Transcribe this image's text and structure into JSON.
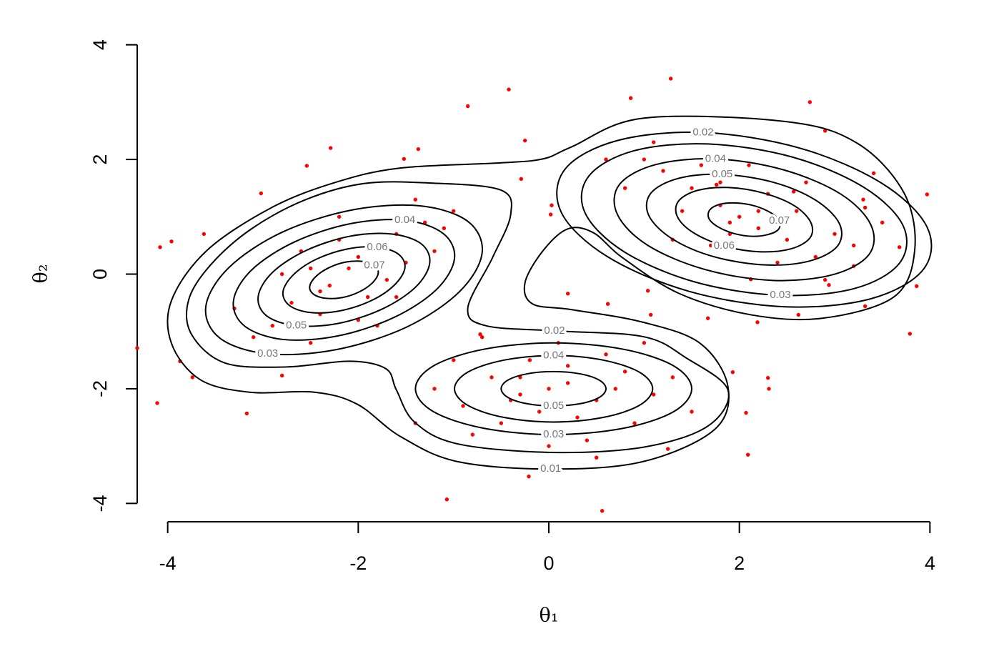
{
  "chart_data": {
    "type": "contour",
    "xlabel": "θ₁",
    "ylabel": "θ₂",
    "xlim": [
      -4.32,
      4.32
    ],
    "ylim": [
      -4.32,
      4.32
    ],
    "xticks": [
      -4,
      -2,
      0,
      2,
      4
    ],
    "yticks": [
      -4,
      -2,
      0,
      2,
      4
    ],
    "line_color": "#000000",
    "point_color": "#ff0000",
    "contours": [
      {
        "level": 0.01,
        "x": [
          -1.56,
          -0.51,
          -0.06,
          0.24,
          0.99,
          2.49,
          3.24,
          3.73,
          3.84,
          3.62,
          2.87,
          2.12,
          1.37,
          0.77,
          0.47,
          0.2,
          -0.06,
          -0.25,
          -0.17,
          0.24,
          0.99,
          1.59,
          1.88,
          1.74,
          0.99,
          0.02,
          -0.96,
          -1.56,
          -2.01,
          -2.46,
          -3.14,
          -3.66,
          -3.96,
          -3.96,
          -3.59,
          -2.91,
          -2.24
        ],
        "y": [
          1.85,
          1.94,
          2.01,
          2.22,
          2.72,
          2.66,
          2.28,
          1.41,
          0.41,
          -0.4,
          -0.77,
          -0.71,
          -0.34,
          0.29,
          0.72,
          0.79,
          0.41,
          -0.15,
          -0.52,
          -0.62,
          -0.84,
          -1.21,
          -1.96,
          -2.71,
          -3.27,
          -3.4,
          -3.27,
          -2.83,
          -2.27,
          -2.06,
          -2.06,
          -1.84,
          -1.21,
          -0.46,
          0.41,
          1.16,
          1.6
        ]
      },
      {
        "level": 0.02,
        "x": [
          -1.94,
          -1.26,
          -0.51,
          -0.4,
          -0.59,
          -0.85,
          -0.66,
          0.06,
          0.99,
          1.44,
          1.88,
          1.67,
          0.99,
          0.02,
          -0.96,
          -1.41,
          -1.6,
          -1.71,
          -2.09,
          -2.76,
          -3.4,
          -3.75,
          -3.78,
          -3.55,
          -3.12,
          -2.55
        ],
        "y": [
          1.58,
          1.59,
          1.47,
          1.04,
          0.29,
          -0.59,
          -0.9,
          -0.99,
          -1.09,
          -1.46,
          -2.02,
          -2.65,
          -3.02,
          -3.11,
          -2.96,
          -2.58,
          -2.02,
          -1.65,
          -1.52,
          -1.62,
          -1.55,
          -1.05,
          -0.45,
          0.16,
          0.79,
          1.3
        ]
      },
      {
        "level": 0.02,
        "x": [
          3.93,
          3.97,
          3.49,
          2.63,
          1.62,
          0.72,
          0.17,
          0.13,
          0.61,
          1.47,
          2.48,
          3.38
        ],
        "y": [
          0.08,
          0.82,
          1.59,
          2.2,
          2.47,
          2.33,
          1.83,
          1.08,
          0.31,
          -0.3,
          -0.57,
          -0.43
        ]
      },
      {
        "level": 0.03,
        "x": [
          3.68,
          3.72,
          3.31,
          2.56,
          1.67,
          0.89,
          0.42,
          0.38,
          0.79,
          1.54,
          2.43,
          3.21
        ],
        "y": [
          0.19,
          0.84,
          1.51,
          2.04,
          2.27,
          2.15,
          1.71,
          1.07,
          0.39,
          -0.14,
          -0.37,
          -0.25
        ]
      },
      {
        "level": 0.04,
        "x": [
          3.36,
          3.38,
          3.06,
          2.46,
          1.75,
          1.12,
          0.74,
          0.72,
          1.04,
          1.64,
          2.35,
          2.98
        ],
        "y": [
          0.34,
          0.86,
          1.4,
          1.82,
          2.01,
          1.91,
          1.56,
          1.04,
          0.5,
          0.08,
          -0.11,
          -0.01
        ]
      },
      {
        "level": 0.05,
        "x": [
          3.03,
          3.05,
          2.8,
          2.36,
          1.82,
          1.36,
          1.07,
          1.05,
          1.3,
          1.74,
          2.28,
          2.74
        ],
        "y": [
          0.49,
          0.88,
          1.29,
          1.6,
          1.74,
          1.67,
          1.41,
          1.02,
          0.61,
          0.3,
          0.16,
          0.23
        ]
      },
      {
        "level": 0.06,
        "x": [
          2.74,
          2.75,
          2.58,
          2.26,
          1.89,
          1.56,
          1.36,
          1.35,
          1.52,
          1.84,
          2.21,
          2.54
        ],
        "y": [
          0.63,
          0.9,
          1.19,
          1.41,
          1.51,
          1.46,
          1.27,
          1.0,
          0.72,
          0.49,
          0.39,
          0.44
        ]
      },
      {
        "level": 0.07,
        "x": [
          2.41,
          2.42,
          2.33,
          2.16,
          1.97,
          1.8,
          1.69,
          1.68,
          1.77,
          1.94,
          2.13,
          2.3
        ],
        "y": [
          0.78,
          0.93,
          1.07,
          1.19,
          1.24,
          1.22,
          1.12,
          0.97,
          0.83,
          0.71,
          0.66,
          0.69
        ]
      },
      {
        "level": 0.03,
        "x": [
          -0.85,
          -1.35,
          -2.06,
          -2.8,
          -3.36,
          -3.6,
          -3.45,
          -2.95,
          -2.24,
          -1.5,
          -0.94,
          -0.7
        ],
        "y": [
          0.92,
          1.19,
          1.12,
          0.73,
          0.11,
          -0.57,
          -1.12,
          -1.39,
          -1.32,
          -0.93,
          -0.31,
          0.37
        ]
      },
      {
        "level": 0.04,
        "x": [
          -1.11,
          -1.51,
          -2.08,
          -2.67,
          -3.12,
          -3.31,
          -3.19,
          -2.79,
          -2.22,
          -1.63,
          -1.18,
          -0.99
        ],
        "y": [
          0.71,
          0.94,
          0.88,
          0.56,
          0.07,
          -0.47,
          -0.91,
          -1.14,
          -1.08,
          -0.76,
          -0.27,
          0.27
        ]
      },
      {
        "level": 0.05,
        "x": [
          -1.34,
          -1.65,
          -2.09,
          -2.55,
          -2.9,
          -3.05,
          -2.96,
          -2.65,
          -2.21,
          -1.75,
          -1.4,
          -1.25
        ],
        "y": [
          0.53,
          0.7,
          0.66,
          0.41,
          0.03,
          -0.39,
          -0.73,
          -0.9,
          -0.86,
          -0.61,
          -0.23,
          0.19
        ]
      },
      {
        "level": 0.06,
        "x": [
          -1.58,
          -1.8,
          -2.11,
          -2.44,
          -2.68,
          -2.79,
          -2.72,
          -2.5,
          -2.19,
          -1.86,
          -1.62,
          -1.51
        ],
        "y": [
          0.35,
          0.47,
          0.44,
          0.26,
          -0.01,
          -0.31,
          -0.55,
          -0.67,
          -0.64,
          -0.46,
          -0.19,
          0.11
        ]
      },
      {
        "level": 0.07,
        "x": [
          -1.83,
          -1.95,
          -2.13,
          -2.31,
          -2.45,
          -2.51,
          -2.47,
          -2.35,
          -2.17,
          -1.99,
          -1.85,
          -1.79
        ],
        "y": [
          0.15,
          0.22,
          0.21,
          0.11,
          -0.05,
          -0.22,
          -0.35,
          -0.42,
          -0.41,
          -0.31,
          -0.15,
          0.02
        ]
      },
      {
        "level": 0.03,
        "x": [
          1.5,
          1.31,
          0.78,
          0.05,
          -0.68,
          -1.21,
          -1.4,
          -1.21,
          -0.68,
          0.05,
          0.78,
          1.31
        ],
        "y": [
          -2.0,
          -1.6,
          -1.31,
          -1.2,
          -1.31,
          -1.6,
          -2.0,
          -2.4,
          -2.69,
          -2.8,
          -2.69,
          -2.4
        ]
      },
      {
        "level": 0.04,
        "x": [
          1.09,
          0.95,
          0.57,
          0.05,
          -0.47,
          -0.85,
          -0.99,
          -0.85,
          -0.47,
          0.05,
          0.57,
          0.95
        ],
        "y": [
          -2.0,
          -1.71,
          -1.5,
          -1.42,
          -1.5,
          -1.71,
          -2.0,
          -2.29,
          -2.5,
          -2.58,
          -2.5,
          -2.29
        ]
      },
      {
        "level": 0.05,
        "x": [
          0.6,
          0.53,
          0.33,
          0.05,
          -0.23,
          -0.43,
          -0.5,
          -0.43,
          -0.23,
          0.05,
          0.33,
          0.53
        ],
        "y": [
          -2.0,
          -1.85,
          -1.74,
          -1.7,
          -1.74,
          -1.85,
          -2.0,
          -2.15,
          -2.26,
          -2.3,
          -2.26,
          -2.15
        ]
      }
    ],
    "points": {
      "x": [
        1.28,
        -0.42,
        2.74,
        -0.85,
        0.86,
        -2.29,
        0.56,
        -1.07,
        -0.21,
        -4.32,
        -4.11,
        3.97,
        3.79,
        2.31,
        2.09,
        1.25,
        -3.96,
        -3.62,
        3.86,
        3.41,
        -2.8,
        -3.17,
        2.07,
        2.3,
        0.03,
        0.02,
        -0.29,
        -0.25,
        0.2,
        1.04,
        1.07,
        1.67,
        1.93,
        0.62,
        -0.72,
        -1.37,
        -1.52,
        -2.54,
        -3.02,
        -4.08,
        -3.87,
        -3.74,
        1.76,
        2.9,
        2.57,
        3.32,
        3.68,
        3.2,
        2.94,
        2.62,
        3.32,
        2.12,
        2.19,
        -2.0,
        -2.3,
        -1.8,
        -2.5,
        -1.6,
        -2.7,
        -1.9,
        -2.2,
        -1.5,
        -2.9,
        -1.3,
        -2.4,
        -1.7,
        -2.6,
        -3.1,
        -1.2,
        -2.0,
        -2.8,
        -1.4,
        -3.3,
        -1.1,
        -2.2,
        -1.8,
        -3.0,
        -2.5,
        -1.0,
        -2.1,
        -1.9,
        -2.4,
        -1.6,
        2.0,
        1.8,
        2.2,
        1.5,
        2.5,
        1.2,
        2.8,
        1.7,
        2.3,
        1.9,
        2.6,
        1.4,
        3.0,
        1.0,
        2.1,
        1.6,
        2.9,
        2.4,
        3.2,
        0.8,
        1.3,
        2.7,
        1.8,
        2.2,
        1.9,
        3.5,
        0.6,
        1.1,
        2.5,
        3.3,
        0.0,
        0.2,
        -0.3,
        0.5,
        -0.6,
        0.8,
        -0.9,
        0.3,
        -0.2,
        1.1,
        -1.2,
        0.6,
        -0.5,
        0.9,
        0.1,
        -1.0,
        1.3,
        -0.8,
        0.4,
        -0.1,
        0.7,
        -0.4,
        1.5,
        -1.4,
        0.0,
        0.2,
        -0.7,
        1.0,
        -0.3,
        0.5
      ],
      "y": [
        3.41,
        3.22,
        3.0,
        2.93,
        3.07,
        2.2,
        -4.13,
        -3.93,
        -3.53,
        -1.29,
        -2.25,
        1.39,
        -1.04,
        -2.0,
        -3.15,
        -3.05,
        0.57,
        0.7,
        -0.21,
        1.76,
        -1.77,
        -2.43,
        -2.42,
        -1.81,
        1.2,
        1.04,
        1.66,
        2.33,
        -0.34,
        -0.29,
        -0.71,
        -0.77,
        -1.71,
        -0.52,
        -1.05,
        2.18,
        2.01,
        1.89,
        1.41,
        0.47,
        -1.52,
        -1.8,
        1.56,
        2.5,
        1.44,
        1.16,
        0.47,
        0.14,
        -0.19,
        -0.71,
        -0.56,
        -0.09,
        -0.84,
        0.3,
        -0.2,
        0.5,
        0.1,
        0.7,
        -0.5,
        -0.4,
        0.6,
        0.2,
        -0.9,
        0.9,
        -0.7,
        -0.1,
        0.4,
        -1.1,
        0.4,
        -0.8,
        0.0,
        1.3,
        -0.6,
        0.8,
        1.0,
        -0.9,
        -1.4,
        -1.2,
        1.1,
        0.1,
        0.2,
        -0.3,
        -0.4,
        1.0,
        1.2,
        0.8,
        1.5,
        0.6,
        1.8,
        0.3,
        0.5,
        1.4,
        0.7,
        1.1,
        1.1,
        0.7,
        2.0,
        1.9,
        1.9,
        -0.1,
        0.2,
        0.5,
        1.5,
        0.6,
        1.6,
        1.6,
        1.1,
        0.9,
        0.9,
        2.0,
        2.3,
        -0.3,
        1.3,
        -2.0,
        -1.9,
        -2.1,
        -2.2,
        -1.8,
        -1.7,
        -2.3,
        -2.5,
        -1.5,
        -2.1,
        -2.0,
        -1.4,
        -2.6,
        -2.6,
        -1.2,
        -1.5,
        -1.8,
        -2.8,
        -2.9,
        -2.4,
        -2.0,
        -2.2,
        -2.4,
        -2.6,
        -3.0,
        -1.6,
        -1.1,
        -1.2,
        -1.8,
        -3.2
      ]
    }
  }
}
